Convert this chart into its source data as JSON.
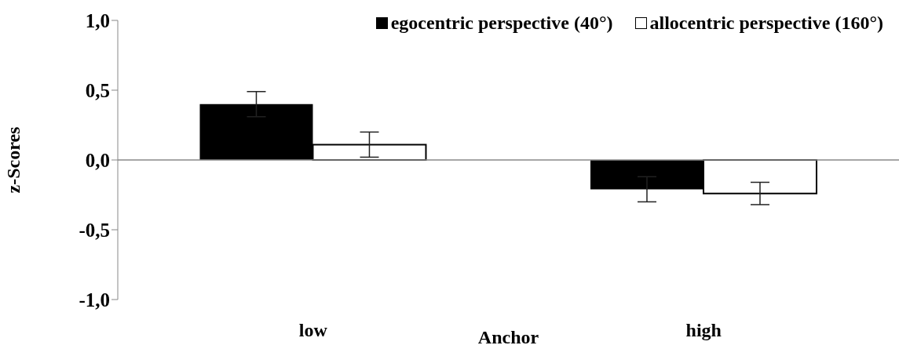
{
  "chart_data": {
    "type": "bar",
    "xlabel": "Anchor",
    "ylabel": "z-Scores",
    "categories": [
      "low",
      "high"
    ],
    "series": [
      {
        "name": "egocentric perspective (40°)",
        "color": "#000000",
        "values": [
          0.4,
          -0.21
        ],
        "errors": [
          0.09,
          0.09
        ]
      },
      {
        "name": "allocentric perspective (160°)",
        "color": "#ffffff",
        "values": [
          0.11,
          -0.24
        ],
        "errors": [
          0.09,
          0.08
        ]
      }
    ],
    "ylim": [
      -1,
      1
    ],
    "yticks": [
      {
        "value": -1,
        "label": "-1,0"
      },
      {
        "value": -0.5,
        "label": "-0,5"
      },
      {
        "value": 0,
        "label": "0,0"
      },
      {
        "value": 0.5,
        "label": "0,5"
      },
      {
        "value": 1,
        "label": "1,0"
      }
    ],
    "legend": "top right"
  }
}
